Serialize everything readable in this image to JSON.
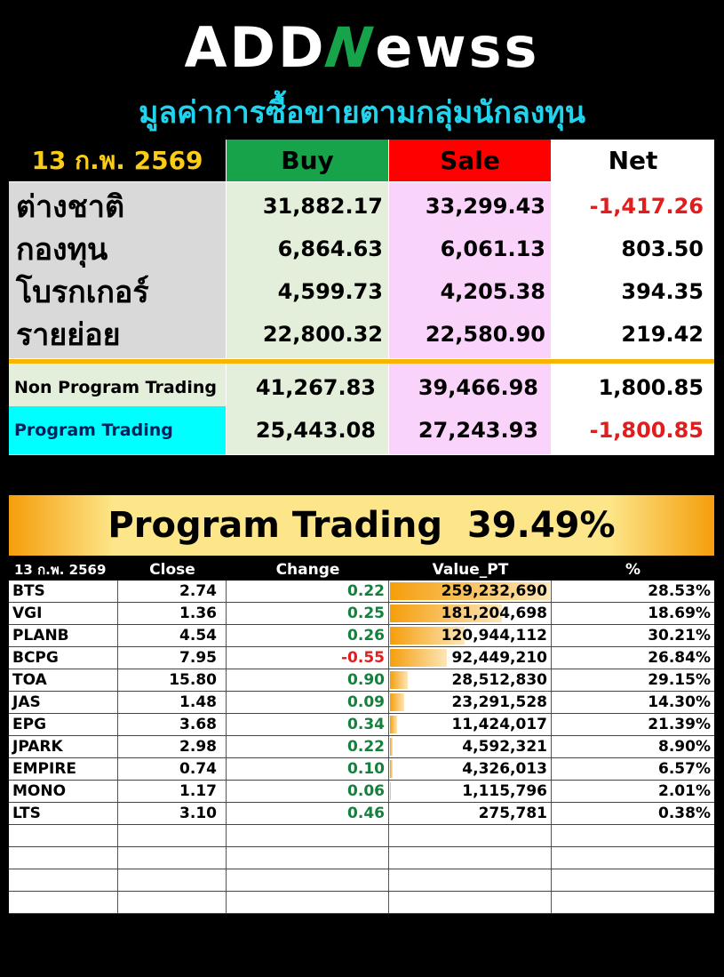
{
  "logo": {
    "part1": "ADD",
    "part2": "N",
    "part3": "ewss"
  },
  "subtitle": "มูลค่าการซื้อขายตามกลุ่มนักลงทุน",
  "summary": {
    "date": "13 ก.พ. 2569",
    "headers": {
      "buy": "Buy",
      "sale": "Sale",
      "net": "Net"
    },
    "header_colors": {
      "buy": "#16a34a",
      "sale": "#ff0000",
      "net": "#ffffff"
    },
    "groups": [
      {
        "name": "ต่างชาติ",
        "buy": "31,882.17",
        "sale": "33,299.43",
        "net": "-1,417.26",
        "negative": true
      },
      {
        "name": "กองทุน",
        "buy": "6,864.63",
        "sale": "6,061.13",
        "net": "803.50",
        "negative": false
      },
      {
        "name": "โบรกเกอร์",
        "buy": "4,599.73",
        "sale": "4,205.38",
        "net": "394.35",
        "negative": false
      },
      {
        "name": "รายย่อย",
        "buy": "22,800.32",
        "sale": "22,580.90",
        "net": "219.42",
        "negative": false
      }
    ],
    "trading": [
      {
        "name": "Non Program Trading",
        "buy": "41,267.83",
        "sale": "39,466.98",
        "net": "1,800.85",
        "negative": false
      },
      {
        "name": "Program Trading",
        "buy": "25,443.08",
        "sale": "27,243.93",
        "net": "-1,800.85",
        "negative": true
      }
    ]
  },
  "banner": {
    "label": "Program Trading",
    "value": "39.49%"
  },
  "stocks": {
    "headers": {
      "date": "13 ก.พ. 2569",
      "close": "Close",
      "change": "Change",
      "value": "Value_PT",
      "pct": "%"
    },
    "rows": [
      {
        "symbol": "BTS",
        "close": "2.74",
        "change": "0.22",
        "value": "259,232,690",
        "pct": "28.53%",
        "value_num": 259232690
      },
      {
        "symbol": "VGI",
        "close": "1.36",
        "change": "0.25",
        "value": "181,204,698",
        "pct": "18.69%",
        "value_num": 181204698
      },
      {
        "symbol": "PLANB",
        "close": "4.54",
        "change": "0.26",
        "value": "120,944,112",
        "pct": "30.21%",
        "value_num": 120944112
      },
      {
        "symbol": "BCPG",
        "close": "7.95",
        "change": "-0.55",
        "value": "92,449,210",
        "pct": "26.84%",
        "value_num": 92449210
      },
      {
        "symbol": "TOA",
        "close": "15.80",
        "change": "0.90",
        "value": "28,512,830",
        "pct": "29.15%",
        "value_num": 28512830
      },
      {
        "symbol": "JAS",
        "close": "1.48",
        "change": "0.09",
        "value": "23,291,528",
        "pct": "14.30%",
        "value_num": 23291528
      },
      {
        "symbol": "EPG",
        "close": "3.68",
        "change": "0.34",
        "value": "11,424,017",
        "pct": "21.39%",
        "value_num": 11424017
      },
      {
        "symbol": "JPARK",
        "close": "2.98",
        "change": "0.22",
        "value": "4,592,321",
        "pct": "8.90%",
        "value_num": 4592321
      },
      {
        "symbol": "EMPIRE",
        "close": "0.74",
        "change": "0.10",
        "value": "4,326,013",
        "pct": "6.57%",
        "value_num": 4326013
      },
      {
        "symbol": "MONO",
        "close": "1.17",
        "change": "0.06",
        "value": "1,115,796",
        "pct": "2.01%",
        "value_num": 1115796
      },
      {
        "symbol": "LTS",
        "close": "3.10",
        "change": "0.46",
        "value": "275,781",
        "pct": "0.38%",
        "value_num": 275781
      }
    ],
    "empty_rows": 4
  }
}
